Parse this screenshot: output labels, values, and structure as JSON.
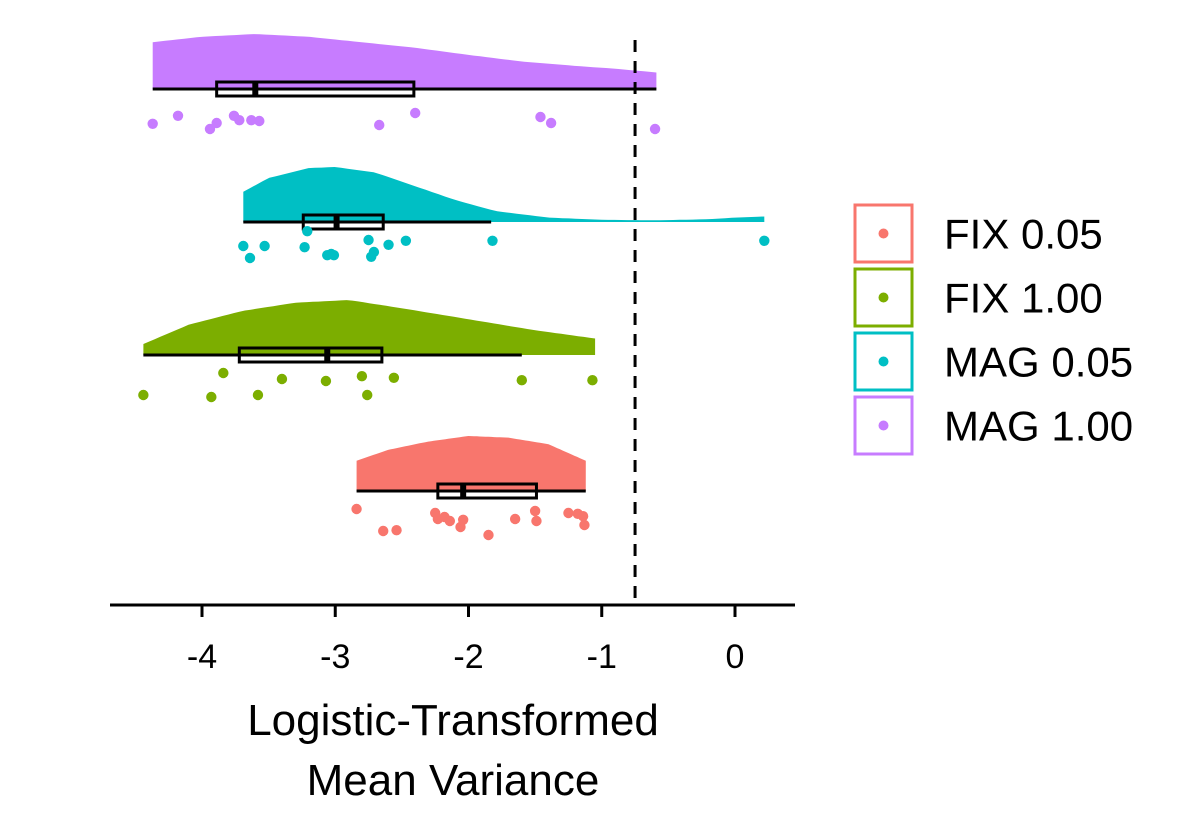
{
  "chart_data": {
    "type": "raincloud",
    "orientation": "horizontal",
    "xlabel_lines": [
      "Logistic-Transformed",
      "Mean Variance"
    ],
    "xlim": [
      -4.7,
      0.45
    ],
    "x_ticks": [
      -4,
      -3,
      -2,
      -1,
      0
    ],
    "x_tick_labels": [
      "-4",
      "-3",
      "-2",
      "-1",
      "0"
    ],
    "reference_line": {
      "x": -0.75,
      "style": "dashed"
    },
    "legend_position": "right",
    "legend_title": "",
    "series": [
      {
        "name": "FIX 0.05",
        "color": "#F8766D",
        "box": {
          "q1": -2.23,
          "median": -2.04,
          "q3": -1.49
        },
        "whiskers": [
          -2.84,
          -1.12
        ],
        "density_range": [
          -2.84,
          -1.12
        ],
        "density": [
          [
            -2.84,
            0.55
          ],
          [
            -2.6,
            0.75
          ],
          [
            -2.3,
            0.9
          ],
          [
            -2.0,
            1.0
          ],
          [
            -1.7,
            0.97
          ],
          [
            -1.4,
            0.85
          ],
          [
            -1.12,
            0.55
          ]
        ],
        "points": [
          {
            "x": -2.84,
            "j": 0.0
          },
          {
            "x": -2.64,
            "j": 0.55
          },
          {
            "x": -2.54,
            "j": 0.53
          },
          {
            "x": -2.25,
            "j": 0.1
          },
          {
            "x": -2.23,
            "j": 0.25
          },
          {
            "x": -2.18,
            "j": 0.2
          },
          {
            "x": -2.14,
            "j": 0.3
          },
          {
            "x": -2.06,
            "j": 0.45
          },
          {
            "x": -2.04,
            "j": 0.27
          },
          {
            "x": -1.85,
            "j": 0.65
          },
          {
            "x": -1.65,
            "j": 0.25
          },
          {
            "x": -1.5,
            "j": 0.05
          },
          {
            "x": -1.49,
            "j": 0.3
          },
          {
            "x": -1.25,
            "j": 0.1
          },
          {
            "x": -1.18,
            "j": 0.12
          },
          {
            "x": -1.14,
            "j": 0.18
          },
          {
            "x": -1.13,
            "j": 0.4
          }
        ]
      },
      {
        "name": "FIX 1.00",
        "color": "#7CAE00",
        "box": {
          "q1": -3.72,
          "median": -3.06,
          "q3": -2.65
        },
        "whiskers": [
          -4.44,
          -1.6
        ],
        "density_range": [
          -4.44,
          -1.05
        ],
        "density": [
          [
            -4.44,
            0.2
          ],
          [
            -4.1,
            0.55
          ],
          [
            -3.7,
            0.8
          ],
          [
            -3.3,
            0.95
          ],
          [
            -2.9,
            1.0
          ],
          [
            -2.5,
            0.85
          ],
          [
            -2.0,
            0.65
          ],
          [
            -1.5,
            0.45
          ],
          [
            -1.05,
            0.3
          ]
        ],
        "points": [
          {
            "x": -4.44,
            "j": 0.55
          },
          {
            "x": -3.93,
            "j": 0.6
          },
          {
            "x": -3.84,
            "j": 0.0
          },
          {
            "x": -3.58,
            "j": 0.55
          },
          {
            "x": -3.4,
            "j": 0.15
          },
          {
            "x": -3.07,
            "j": 0.2
          },
          {
            "x": -2.8,
            "j": 0.08
          },
          {
            "x": -2.76,
            "j": 0.55
          },
          {
            "x": -2.56,
            "j": 0.12
          },
          {
            "x": -1.6,
            "j": 0.18
          },
          {
            "x": -1.07,
            "j": 0.18
          }
        ]
      },
      {
        "name": "MAG 0.05",
        "color": "#00BFC4",
        "box": {
          "q1": -3.24,
          "median": -2.99,
          "q3": -2.64
        },
        "whiskers": [
          -3.69,
          -1.83
        ],
        "density_range": [
          -3.69,
          0.22
        ],
        "density": [
          [
            -3.69,
            0.55
          ],
          [
            -3.5,
            0.8
          ],
          [
            -3.2,
            0.98
          ],
          [
            -3.0,
            1.0
          ],
          [
            -2.7,
            0.9
          ],
          [
            -2.4,
            0.65
          ],
          [
            -2.1,
            0.4
          ],
          [
            -1.8,
            0.2
          ],
          [
            -1.4,
            0.08
          ],
          [
            -1.0,
            0.04
          ],
          [
            -0.6,
            0.03
          ],
          [
            -0.2,
            0.05
          ],
          [
            0.0,
            0.08
          ],
          [
            0.22,
            0.1
          ]
        ],
        "points": [
          {
            "x": -3.69,
            "j": 0.15
          },
          {
            "x": -3.64,
            "j": 0.45
          },
          {
            "x": -3.53,
            "j": 0.15
          },
          {
            "x": -3.23,
            "j": 0.18
          },
          {
            "x": -3.21,
            "j": -0.22
          },
          {
            "x": -3.06,
            "j": 0.38
          },
          {
            "x": -3.03,
            "j": 0.35
          },
          {
            "x": -3.01,
            "j": 0.38
          },
          {
            "x": -2.75,
            "j": 0.0
          },
          {
            "x": -2.73,
            "j": 0.42
          },
          {
            "x": -2.71,
            "j": 0.3
          },
          {
            "x": -2.6,
            "j": 0.12
          },
          {
            "x": -2.47,
            "j": 0.02
          },
          {
            "x": -1.82,
            "j": 0.02
          },
          {
            "x": 0.22,
            "j": 0.02
          }
        ]
      },
      {
        "name": "MAG 1.00",
        "color": "#C77CFF",
        "box": {
          "q1": -3.89,
          "median": -3.6,
          "q3": -2.41
        },
        "whiskers": [
          -4.37,
          -0.59
        ],
        "density_range": [
          -4.37,
          -0.59
        ],
        "density": [
          [
            -4.37,
            0.85
          ],
          [
            -4.0,
            0.95
          ],
          [
            -3.6,
            1.0
          ],
          [
            -3.2,
            0.95
          ],
          [
            -2.8,
            0.85
          ],
          [
            -2.4,
            0.75
          ],
          [
            -2.0,
            0.62
          ],
          [
            -1.6,
            0.5
          ],
          [
            -1.2,
            0.42
          ],
          [
            -0.9,
            0.37
          ],
          [
            -0.59,
            0.3
          ]
        ],
        "points": [
          {
            "x": -4.37,
            "j": 0.42
          },
          {
            "x": -4.18,
            "j": 0.22
          },
          {
            "x": -3.94,
            "j": 0.55
          },
          {
            "x": -3.89,
            "j": 0.4
          },
          {
            "x": -3.76,
            "j": 0.22
          },
          {
            "x": -3.72,
            "j": 0.33
          },
          {
            "x": -3.63,
            "j": 0.33
          },
          {
            "x": -3.57,
            "j": 0.35
          },
          {
            "x": -2.67,
            "j": 0.45
          },
          {
            "x": -2.4,
            "j": 0.15
          },
          {
            "x": -1.46,
            "j": 0.25
          },
          {
            "x": -1.38,
            "j": 0.4
          },
          {
            "x": -0.6,
            "j": 0.55
          }
        ]
      }
    ]
  }
}
